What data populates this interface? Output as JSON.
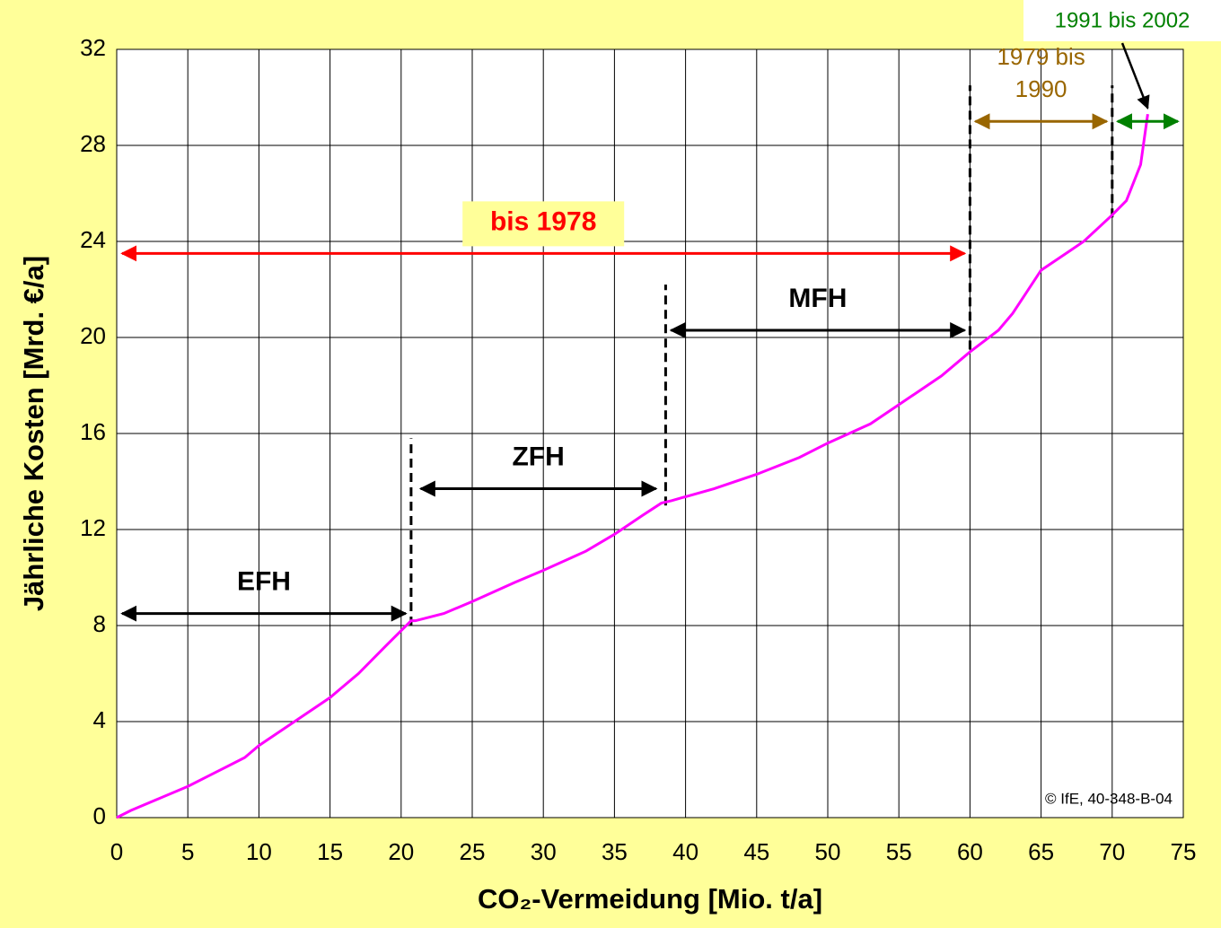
{
  "chart_data": {
    "type": "line",
    "xlabel": "CO₂-Vermeidung [Mio. t/a]",
    "ylabel": "Jährliche Kosten [Mrd. €/a]",
    "xlim": [
      0,
      75
    ],
    "ylim": [
      0,
      32
    ],
    "xticks": [
      0,
      5,
      10,
      15,
      20,
      25,
      30,
      35,
      40,
      45,
      50,
      55,
      60,
      65,
      70,
      75
    ],
    "yticks": [
      0,
      4,
      8,
      12,
      16,
      20,
      24,
      28,
      32
    ],
    "grid": true,
    "x": [
      0,
      1,
      3,
      5,
      7,
      9,
      10,
      12,
      15,
      17,
      19,
      20.7,
      21,
      23,
      25,
      28,
      30,
      33,
      35,
      37,
      38.3,
      39,
      42,
      45,
      48,
      50,
      53,
      55,
      58,
      60,
      62,
      63,
      65,
      67,
      68,
      70,
      71,
      72,
      72.5
    ],
    "series": [
      {
        "name": "Kosten",
        "color": "#ff00ff",
        "values": [
          0,
          0.3,
          0.8,
          1.3,
          1.9,
          2.5,
          3,
          3.8,
          5,
          6,
          7.2,
          8.2,
          8.2,
          8.5,
          9,
          9.8,
          10.3,
          11.1,
          11.8,
          12.6,
          13.1,
          13.2,
          13.7,
          14.3,
          15,
          15.6,
          16.4,
          17.2,
          18.4,
          19.4,
          20.3,
          21,
          22.8,
          23.6,
          24,
          25.1,
          25.7,
          27.2,
          29.3
        ]
      }
    ],
    "dividers": [
      {
        "x": 20.7,
        "y": [
          8,
          15.8
        ]
      },
      {
        "x": 38.6,
        "y": [
          13,
          22.2
        ]
      },
      {
        "x": 60,
        "y": [
          19.5,
          30.5
        ]
      },
      {
        "x": 70,
        "y": [
          25,
          30.5
        ]
      }
    ],
    "annotations": [
      {
        "lines": [
          "EFH"
        ],
        "color": "#000000",
        "x": [
          0,
          20.7
        ],
        "y": 8.5
      },
      {
        "lines": [
          "ZFH"
        ],
        "color": "#000000",
        "x": [
          21,
          38.3
        ],
        "y": 13.7
      },
      {
        "lines": [
          "MFH"
        ],
        "color": "#000000",
        "x": [
          38.6,
          60
        ],
        "y": 20.3
      },
      {
        "lines": [
          "bis 1978"
        ],
        "color": "#ff0000",
        "x": [
          0,
          60
        ],
        "y": 23.5
      },
      {
        "lines": [
          "1979 bis",
          "1990"
        ],
        "color": "#996600",
        "x": [
          60,
          70
        ],
        "y": 29
      },
      {
        "lines": [
          "1991 bis 2002"
        ],
        "color": "#008000",
        "x": [
          70,
          75
        ],
        "y": 29,
        "callout": [
          72.5,
          29.4
        ]
      }
    ],
    "copyright": "© IfE, 40-348-B-04"
  }
}
